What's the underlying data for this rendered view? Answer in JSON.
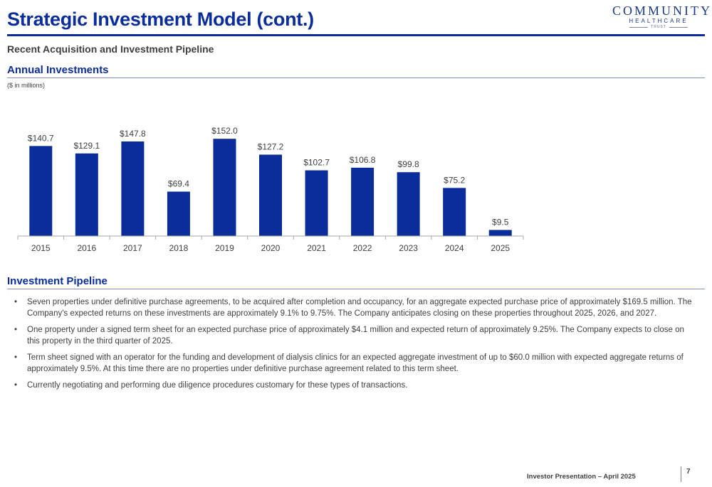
{
  "header": {
    "title": "Strategic Investment Model (cont.)",
    "subtitle": "Recent Acquisition and Investment Pipeline"
  },
  "logo": {
    "line1": "COMMUNITY",
    "line2": "HEALTHCARE",
    "line3": "TRUST"
  },
  "annual": {
    "heading": "Annual Investments",
    "units_note": "($ in millions)"
  },
  "chart_data": {
    "type": "bar",
    "title": "",
    "xlabel": "",
    "ylabel": "",
    "categories": [
      "2015",
      "2016",
      "2017",
      "2018",
      "2019",
      "2020",
      "2021",
      "2022",
      "2023",
      "2024",
      "2025"
    ],
    "values": [
      140.7,
      129.1,
      147.8,
      69.4,
      152.0,
      127.2,
      102.7,
      106.8,
      99.8,
      75.2,
      9.5
    ],
    "value_labels": [
      "$140.7",
      "$129.1",
      "$147.8",
      "$69.4",
      "$152.0",
      "$127.2",
      "$102.7",
      "$106.8",
      "$99.8",
      "$75.2",
      "$9.5"
    ],
    "ylim": [
      0,
      160
    ],
    "grid": false,
    "bar_color": "#0a2d9b"
  },
  "pipeline": {
    "heading": "Investment Pipeline",
    "bullet_symbol": "•",
    "items": [
      "Seven properties under definitive purchase agreements, to be acquired after completion and occupancy, for an aggregate expected purchase price of approximately $169.5 million. The Company's expected returns on these investments are approximately 9.1% to 9.75%. The Company anticipates closing on these properties throughout 2025, 2026, and 2027.",
      "One property under a signed term sheet for an expected purchase price of approximately $4.1 million and expected return of approximately 9.25%. The Company expects to close on this property in the third quarter of 2025.",
      "Term sheet signed with an operator for the funding and development of dialysis clinics for an expected aggregate investment of up to $60.0 million with expected aggregate returns of approximately 9.5%. At this time there are no properties under definitive purchase agreement related to this term sheet.",
      "Currently negotiating and performing due diligence procedures customary for these types of transactions."
    ]
  },
  "footer": {
    "text": "Investor Presentation – April 2025",
    "page_number": "7"
  },
  "colors": {
    "accent": "#0a2d9b",
    "text": "#404040"
  }
}
